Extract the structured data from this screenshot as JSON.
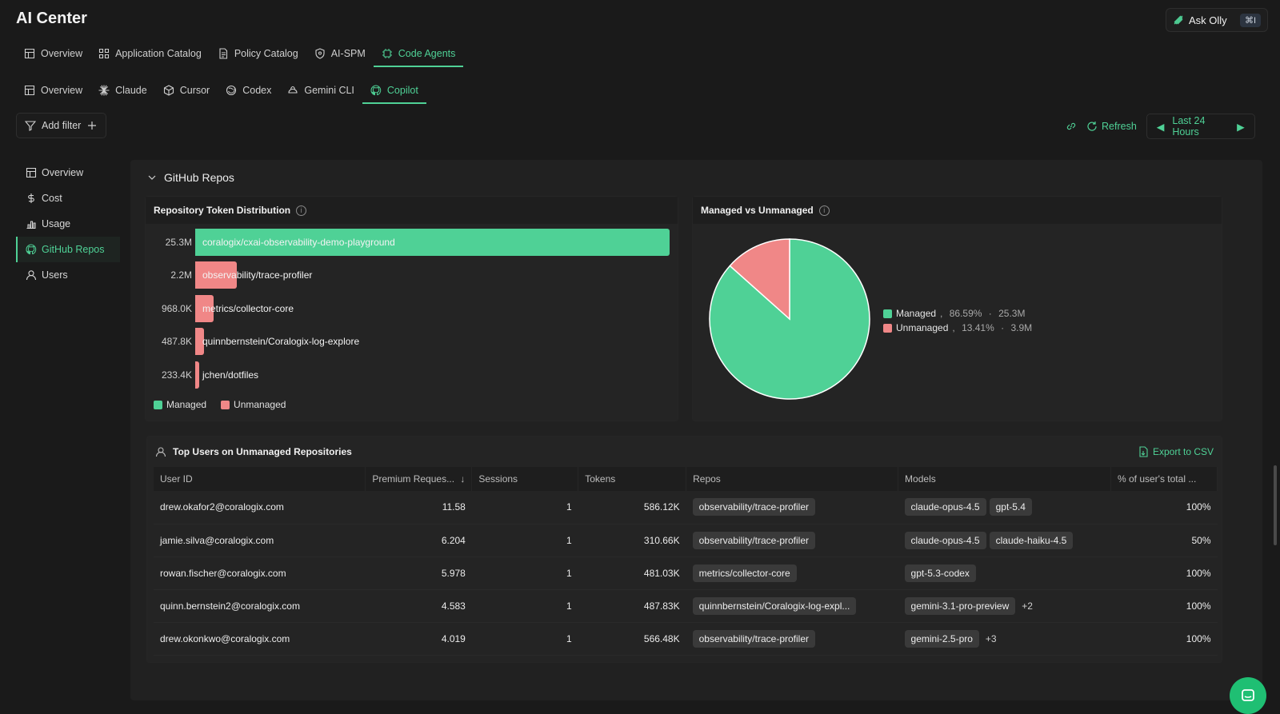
{
  "app": {
    "title": "AI Center"
  },
  "ask_olly": {
    "label": "Ask Olly",
    "shortcut": "⌘I"
  },
  "main_tabs": [
    {
      "label": "Overview",
      "icon": "grid-icon"
    },
    {
      "label": "Application Catalog",
      "icon": "apps-icon"
    },
    {
      "label": "Policy Catalog",
      "icon": "doc-icon"
    },
    {
      "label": "AI-SPM",
      "icon": "shield-icon"
    },
    {
      "label": "Code Agents",
      "icon": "chip-icon",
      "active": true
    }
  ],
  "agent_tabs": [
    {
      "label": "Overview",
      "icon": "grid-icon"
    },
    {
      "label": "Claude",
      "icon": "claude-icon"
    },
    {
      "label": "Cursor",
      "icon": "cursor-icon"
    },
    {
      "label": "Codex",
      "icon": "codex-icon"
    },
    {
      "label": "Gemini CLI",
      "icon": "gemini-icon"
    },
    {
      "label": "Copilot",
      "icon": "github-icon",
      "active": true
    }
  ],
  "filter": {
    "add_label": "Add filter"
  },
  "controls": {
    "refresh_label": "Refresh",
    "time_range": "Last 24 Hours"
  },
  "sidebar": {
    "items": [
      {
        "label": "Overview",
        "icon": "grid-icon"
      },
      {
        "label": "Cost",
        "icon": "dollar-icon"
      },
      {
        "label": "Usage",
        "icon": "bar-chart-icon"
      },
      {
        "label": "GitHub Repos",
        "icon": "github-icon",
        "active": true
      },
      {
        "label": "Users",
        "icon": "user-icon"
      }
    ]
  },
  "section": {
    "title": "GitHub Repos"
  },
  "colors": {
    "managed": "#4fd196",
    "unmanaged": "#f08787",
    "accent": "#4fd196"
  },
  "chart_data": [
    {
      "type": "bar",
      "title": "Repository Token Distribution",
      "orientation": "horizontal",
      "categories": [
        "coralogix/cxai-observability-demo-playground",
        "observability/trace-profiler",
        "metrics/collector-core",
        "quinnbernstein/Coralogix-log-explore",
        "jchen/dotfiles"
      ],
      "values": [
        25300000,
        2200000,
        968000,
        487800,
        233400
      ],
      "value_labels": [
        "25.3M",
        "2.2M",
        "968.0K",
        "487.8K",
        "233.4K"
      ],
      "status": [
        "managed",
        "unmanaged",
        "unmanaged",
        "unmanaged",
        "unmanaged"
      ],
      "legend": [
        "Managed",
        "Unmanaged"
      ],
      "legend_position": "bottom-left"
    },
    {
      "type": "pie",
      "title": "Managed vs Unmanaged",
      "series": [
        {
          "name": "Managed",
          "value": 86.59,
          "pct_label": "86.59%",
          "tokens": "25.3M"
        },
        {
          "name": "Unmanaged",
          "value": 13.41,
          "pct_label": "13.41%",
          "tokens": "3.9M"
        }
      ],
      "legend_position": "right"
    }
  ],
  "users_table": {
    "title": "Top Users on Unmanaged Repositories",
    "export_label": "Export to CSV",
    "columns": [
      "User ID",
      "Premium Reques...",
      "Sessions",
      "Tokens",
      "Repos",
      "Models",
      "% of user's total ..."
    ],
    "rows": [
      {
        "user": "drew.okafor2@coralogix.com",
        "premium": "11.58",
        "sessions": "1",
        "tokens": "586.12K",
        "repos": [
          "observability/trace-profiler"
        ],
        "models": [
          "claude-opus-4.5",
          "gpt-5.4"
        ],
        "more": "",
        "pct": "100%"
      },
      {
        "user": "jamie.silva@coralogix.com",
        "premium": "6.204",
        "sessions": "1",
        "tokens": "310.66K",
        "repos": [
          "observability/trace-profiler"
        ],
        "models": [
          "claude-opus-4.5",
          "claude-haiku-4.5"
        ],
        "more": "",
        "pct": "50%"
      },
      {
        "user": "rowan.fischer@coralogix.com",
        "premium": "5.978",
        "sessions": "1",
        "tokens": "481.03K",
        "repos": [
          "metrics/collector-core"
        ],
        "models": [
          "gpt-5.3-codex"
        ],
        "more": "",
        "pct": "100%"
      },
      {
        "user": "quinn.bernstein2@coralogix.com",
        "premium": "4.583",
        "sessions": "1",
        "tokens": "487.83K",
        "repos": [
          "quinnbernstein/Coralogix-log-expl..."
        ],
        "models": [
          "gemini-3.1-pro-preview"
        ],
        "more": "+2",
        "pct": "100%"
      },
      {
        "user": "drew.okonkwo@coralogix.com",
        "premium": "4.019",
        "sessions": "1",
        "tokens": "566.48K",
        "repos": [
          "observability/trace-profiler"
        ],
        "models": [
          "gemini-2.5-pro"
        ],
        "more": "+3",
        "pct": "100%"
      }
    ]
  }
}
